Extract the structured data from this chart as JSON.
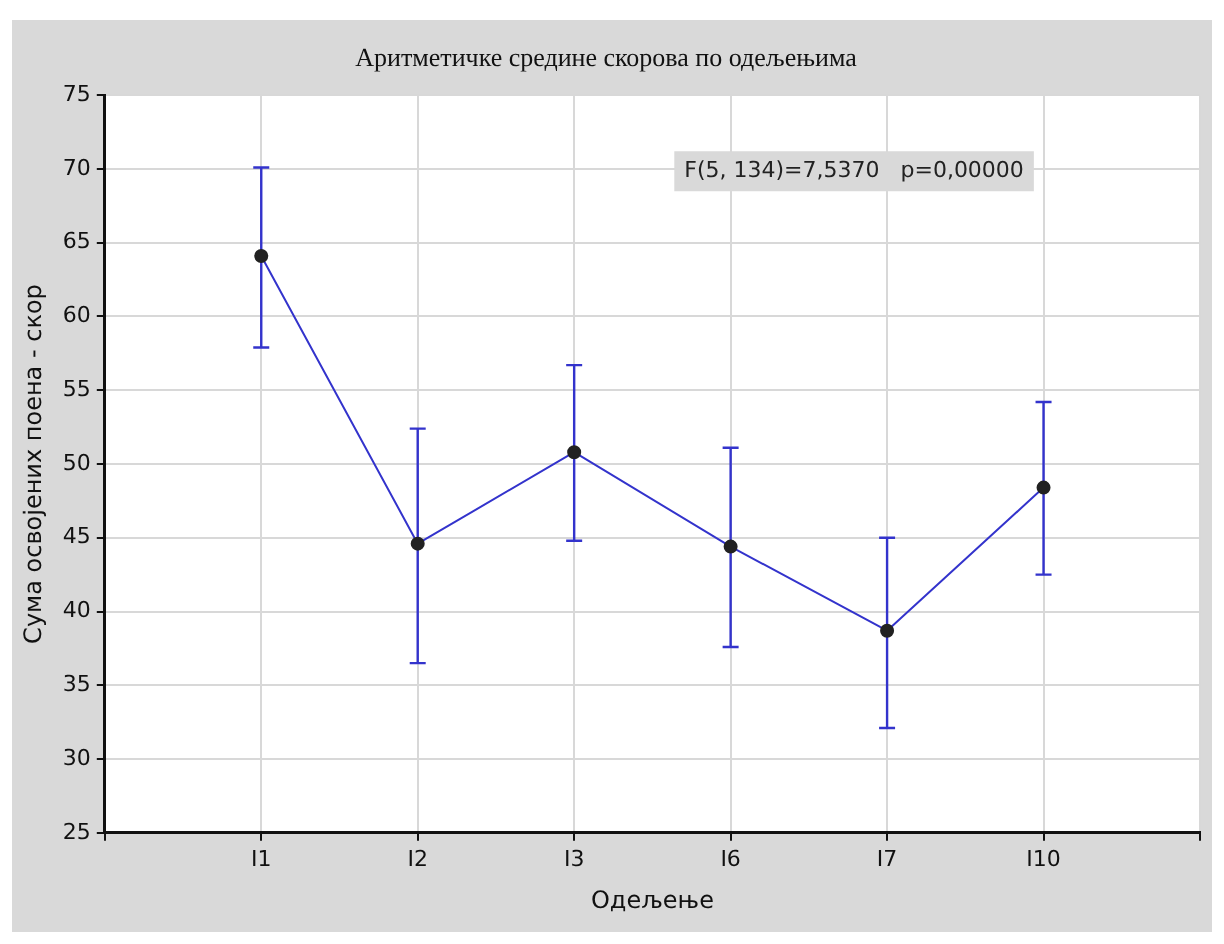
{
  "chart_data": {
    "type": "line",
    "title": "Аритметичке средине скорова по одељењима",
    "xlabel": "Одељење",
    "ylabel": "Сума освојених поена - скор",
    "categories": [
      "I1",
      "I2",
      "I3",
      "I6",
      "I7",
      "I10"
    ],
    "series": [
      {
        "color": "#3333cc",
        "values": [
          64.1,
          44.6,
          50.8,
          44.4,
          38.7,
          48.4
        ],
        "errors": [
          [
            57.9,
            70.1
          ],
          [
            36.5,
            52.4
          ],
          [
            44.8,
            56.7
          ],
          [
            37.6,
            51.1
          ],
          [
            32.1,
            45.0
          ],
          [
            42.5,
            54.2
          ]
        ]
      }
    ],
    "ylim": [
      25,
      75
    ],
    "yticks": [
      25,
      30,
      35,
      40,
      45,
      50,
      55,
      60,
      65,
      70,
      75
    ],
    "grid": true,
    "marker": "circle",
    "line_style": "solid",
    "annotations": [
      "F(5, 134)=7,5370   p=0,00000"
    ]
  }
}
